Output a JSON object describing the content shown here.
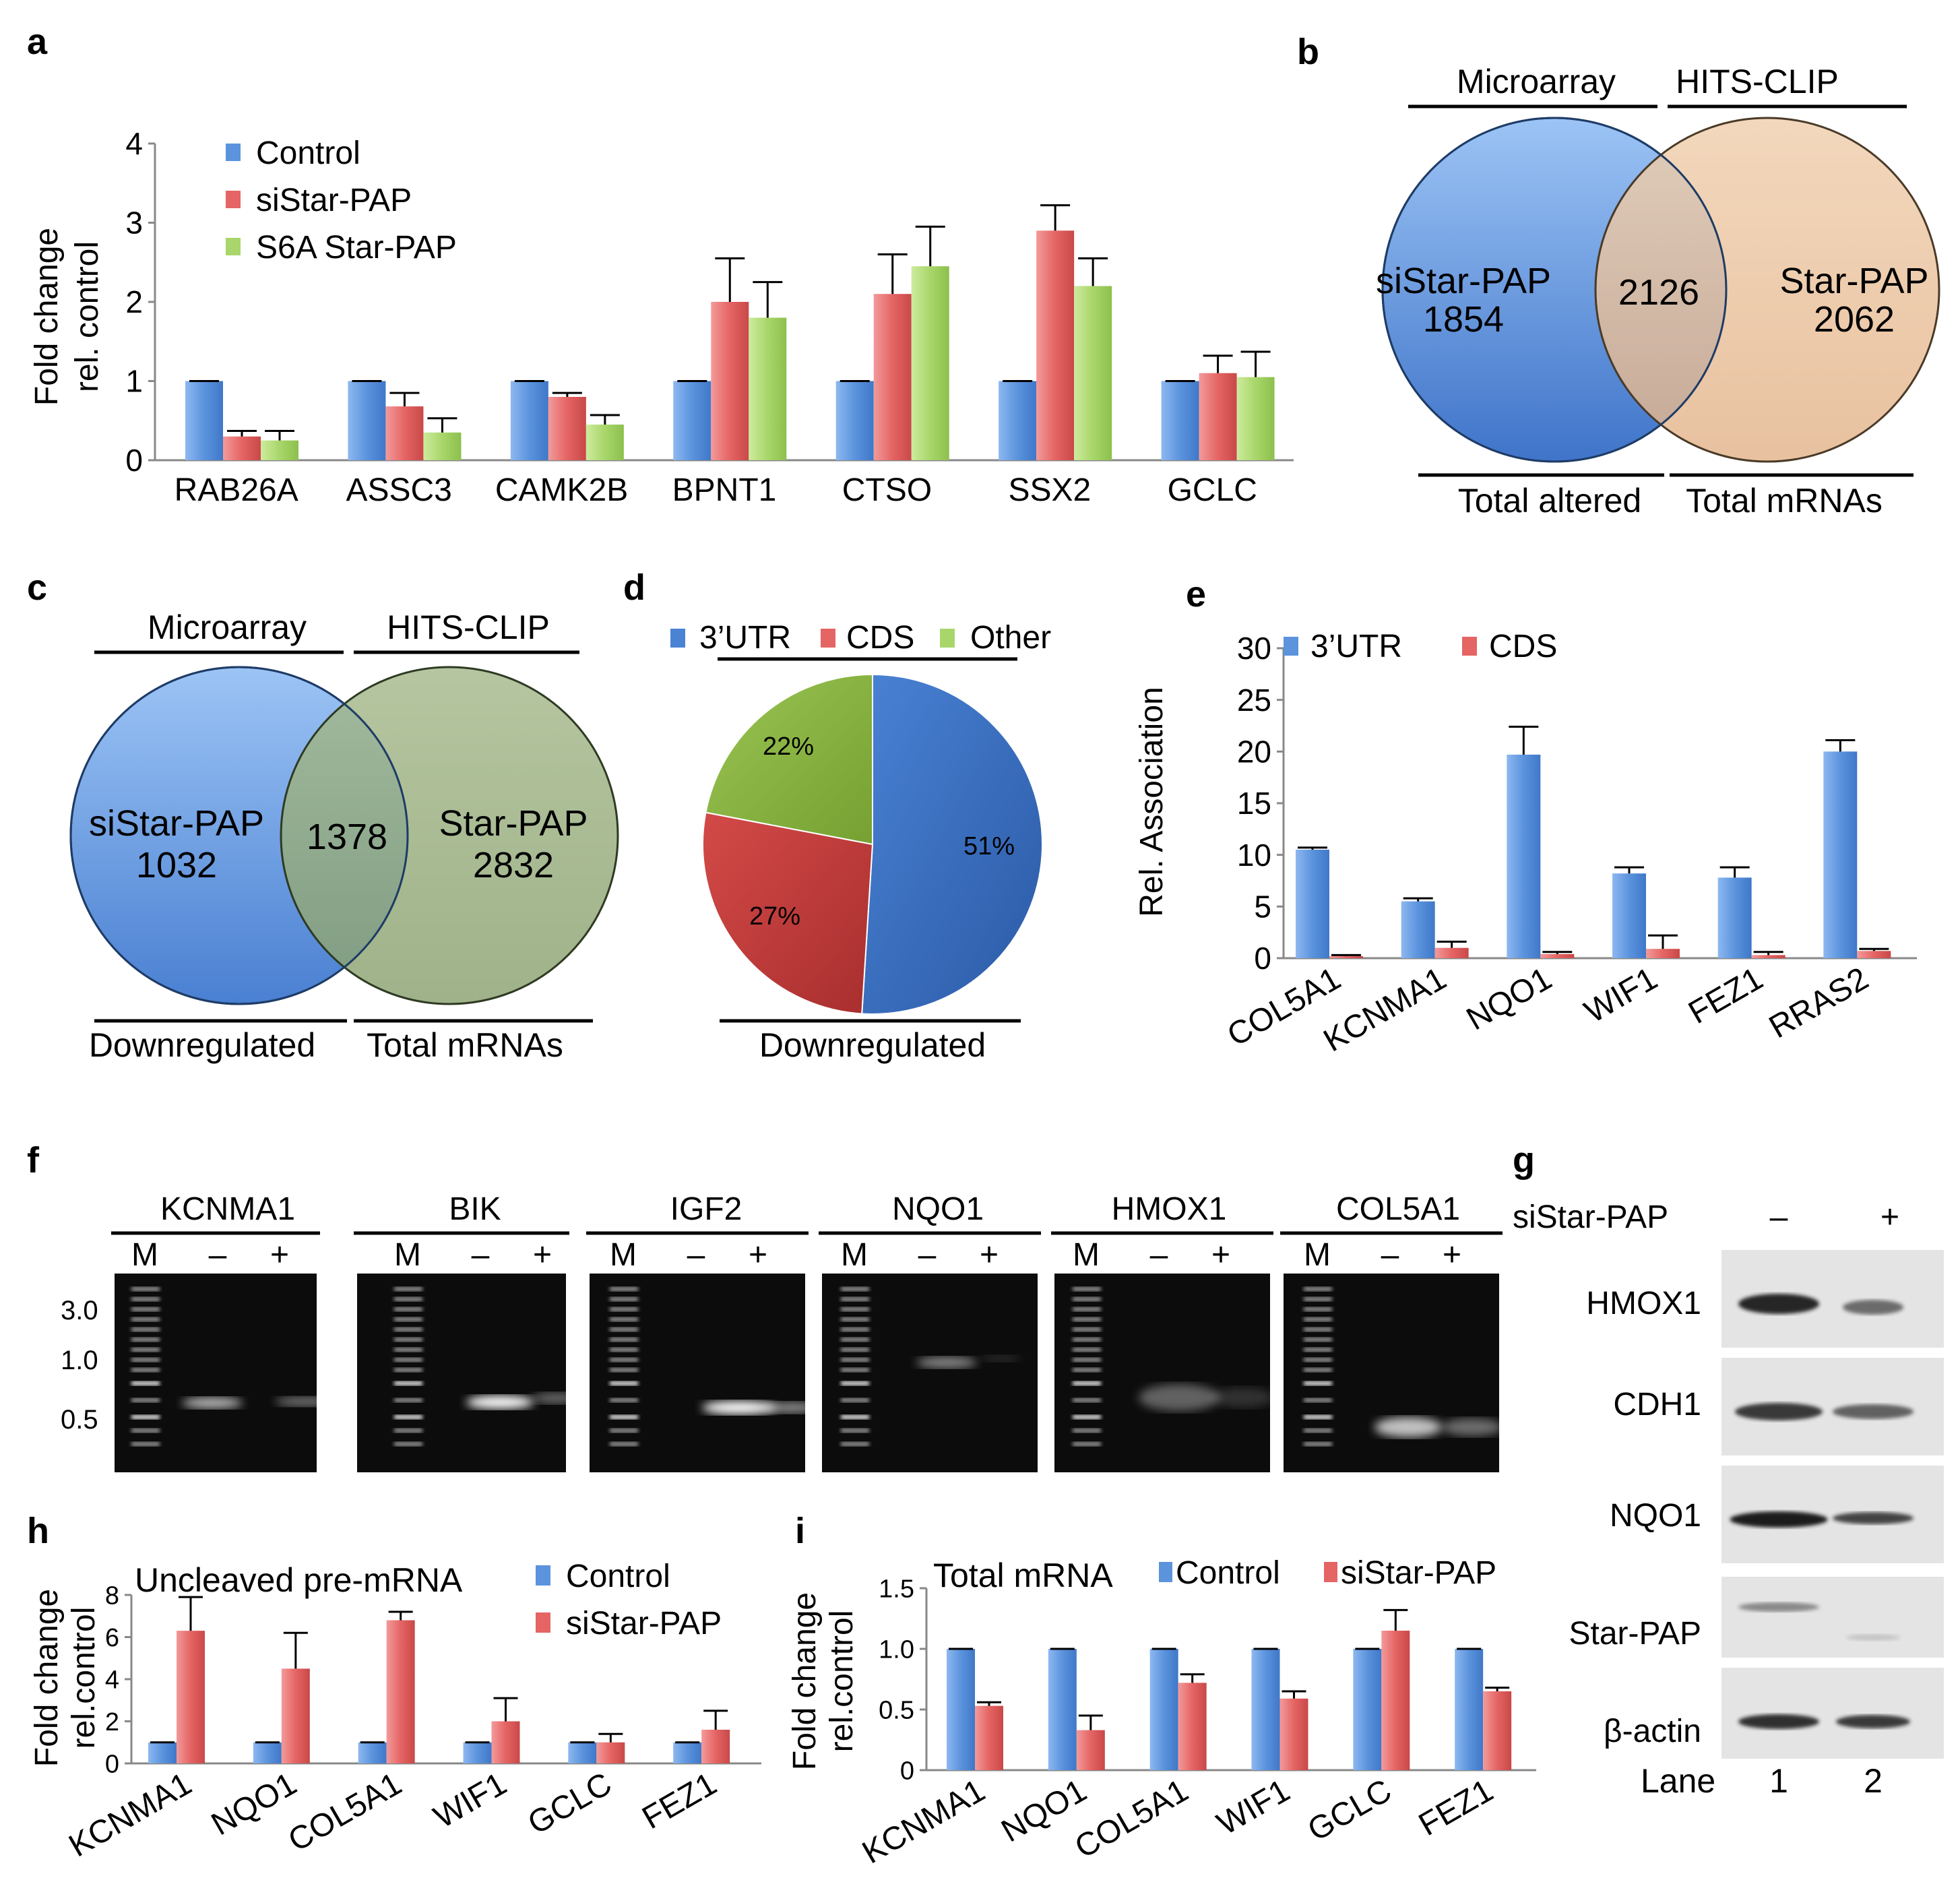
{
  "colors": {
    "control": "#5b93dd",
    "sistar": "#e56464",
    "s6a": "#a8d66a",
    "blue_circle": "#4a82d4",
    "tan_circle": "#e9c09a",
    "olive_circle": "#93a978",
    "pie_3utr": "#3a6fc0",
    "pie_cds": "#c0393a",
    "pie_other": "#86b23e",
    "axis": "#888888",
    "error": "#000000"
  },
  "panels": {
    "a": "a",
    "b": "b",
    "c": "c",
    "d": "d",
    "e": "e",
    "f": "f",
    "g": "g",
    "h": "h",
    "i": "i"
  },
  "chart_data": [
    {
      "id": "a",
      "type": "bar",
      "ylabel": "Fold change rel. control",
      "ylabel_lines": [
        "Fold change",
        "rel. control"
      ],
      "ylim": [
        0,
        4
      ],
      "yticks": [
        "0",
        "1",
        "2",
        "3",
        "4"
      ],
      "categories": [
        "RAB26A",
        "ASSC3",
        "CAMK2B",
        "BPNT1",
        "CTSO",
        "SSX2",
        "GCLC"
      ],
      "series": [
        {
          "name": "Control",
          "values": [
            1,
            1,
            1,
            1,
            1,
            1,
            1
          ],
          "errors": [
            0,
            0,
            0,
            0,
            0,
            0,
            0
          ]
        },
        {
          "name": "siStar-PAP",
          "values": [
            0.3,
            0.68,
            0.8,
            2.0,
            2.1,
            2.9,
            1.1
          ],
          "errors": [
            0.07,
            0.17,
            0.05,
            0.55,
            0.5,
            0.32,
            0.22
          ]
        },
        {
          "name": "S6A Star-PAP",
          "values": [
            0.25,
            0.35,
            0.45,
            1.8,
            2.45,
            2.2,
            1.05
          ],
          "errors": [
            0.12,
            0.18,
            0.12,
            0.45,
            0.5,
            0.35,
            0.32
          ]
        }
      ]
    },
    {
      "id": "e",
      "type": "bar",
      "ylabel": "Rel. Association",
      "ylim": [
        0,
        30
      ],
      "yticks": [
        "0",
        "5",
        "10",
        "15",
        "20",
        "25",
        "30"
      ],
      "categories": [
        "COL5A1",
        "KCNMA1",
        "NQO1",
        "WIF1",
        "FEZ1",
        "RRAS2"
      ],
      "series": [
        {
          "name": "3’UTR",
          "values": [
            10.5,
            5.5,
            19.7,
            8.2,
            7.8,
            20.0
          ],
          "errors": [
            0.2,
            0.3,
            2.7,
            0.6,
            1.0,
            1.1
          ]
        },
        {
          "name": "CDS",
          "values": [
            0.2,
            1.0,
            0.4,
            0.9,
            0.3,
            0.7
          ],
          "errors": [
            0.1,
            0.6,
            0.2,
            1.3,
            0.3,
            0.2
          ]
        }
      ]
    },
    {
      "id": "h",
      "type": "bar",
      "title": "Uncleaved pre-mRNA",
      "ylabel": "Fold change rel.control",
      "ylabel_lines": [
        "Fold change",
        "rel.control"
      ],
      "ylim": [
        0,
        8
      ],
      "yticks": [
        "0",
        "2",
        "4",
        "6",
        "8"
      ],
      "categories": [
        "KCNMA1",
        "NQO1",
        "COL5A1",
        "WIF1",
        "GCLC",
        "FEZ1"
      ],
      "series": [
        {
          "name": "Control",
          "values": [
            1,
            1,
            1,
            1,
            1,
            1
          ],
          "errors": [
            0,
            0,
            0,
            0,
            0,
            0
          ]
        },
        {
          "name": "siStar-PAP",
          "values": [
            6.3,
            4.5,
            6.8,
            2.0,
            1.0,
            1.6
          ],
          "errors": [
            1.6,
            1.7,
            0.4,
            1.1,
            0.4,
            0.9
          ]
        }
      ]
    },
    {
      "id": "i",
      "type": "bar",
      "title": "Total mRNA",
      "ylabel": "Fold change rel.control",
      "ylabel_lines": [
        "Fold change",
        "rel.control"
      ],
      "ylim": [
        0,
        1.5
      ],
      "yticks": [
        "0",
        "0.5",
        "1.0",
        "1.5"
      ],
      "categories": [
        "KCNMA1",
        "NQO1",
        "COL5A1",
        "WIF1",
        "GCLC",
        "FEZ1"
      ],
      "series": [
        {
          "name": "Control",
          "values": [
            1,
            1,
            1,
            1,
            1,
            1
          ],
          "errors": [
            0,
            0,
            0,
            0,
            0,
            0
          ]
        },
        {
          "name": "siStar-PAP",
          "values": [
            0.53,
            0.33,
            0.72,
            0.59,
            1.15,
            0.65
          ],
          "errors": [
            0.03,
            0.12,
            0.07,
            0.06,
            0.17,
            0.03
          ]
        }
      ]
    },
    {
      "id": "d",
      "type": "pie",
      "legend": [
        "3’UTR",
        "CDS",
        "Other"
      ],
      "slices": [
        {
          "label": "3’UTR",
          "value": 51,
          "text": "51%"
        },
        {
          "label": "CDS",
          "value": 27,
          "text": "27%"
        },
        {
          "label": "Other",
          "value": 22,
          "text": "22%"
        }
      ],
      "footer": "Downregulated"
    }
  ],
  "venn_b": {
    "top_left": "Microarray",
    "top_right": "HITS-CLIP",
    "left_name": "siStar-PAP",
    "left_count": "1854",
    "overlap": "2126",
    "right_name": "Star-PAP",
    "right_count": "2062",
    "bottom_left": "Total altered",
    "bottom_right": "Total mRNAs"
  },
  "venn_c": {
    "top_left": "Microarray",
    "top_right": "HITS-CLIP",
    "left_name": "siStar-PAP",
    "left_count": "1032",
    "overlap": "1378",
    "right_name": "Star-PAP",
    "right_count": "2832",
    "bottom_left": "Downregulated",
    "bottom_right": "Total mRNAs"
  },
  "gel_f": {
    "marker_label": "M",
    "size_labels": [
      "3.0",
      "1.0",
      "0.5"
    ],
    "lane_minus": "–",
    "lane_plus": "+",
    "gels": [
      "KCNMA1",
      "BIK",
      "IGF2",
      "NQO1",
      "HMOX1",
      "COL5A1"
    ]
  },
  "blot_g": {
    "treatment_label": "siStar-PAP",
    "lane1_sign": "–",
    "lane2_sign": "+",
    "rows": [
      "HMOX1",
      "CDH1",
      "NQO1",
      "Star-PAP",
      "β-actin"
    ],
    "lane_label": "Lane",
    "lanes": [
      "1",
      "2"
    ]
  }
}
